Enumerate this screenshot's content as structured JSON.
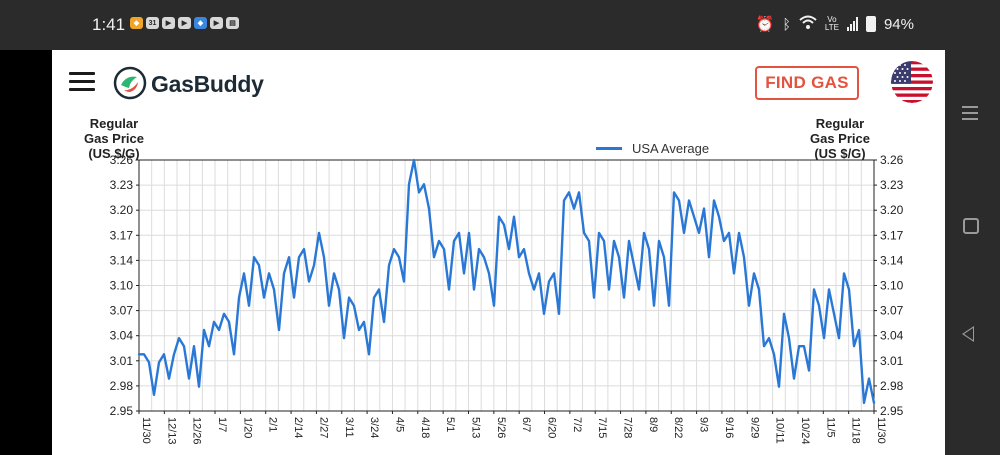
{
  "status_bar": {
    "time": "1:41",
    "notification_icons": [
      "app-orange-icon",
      "calendar-31-icon",
      "youtube-icon",
      "youtube-icon",
      "app-blue-icon",
      "youtube-icon",
      "gallery-icon"
    ],
    "calendar_label": "31",
    "battery": "94%",
    "system_icons": [
      "alarm-icon",
      "bluetooth-icon",
      "wifi-icon",
      "volte-icon",
      "signal-icon",
      "battery-icon"
    ]
  },
  "header": {
    "app_name": "GasBuddy",
    "find_gas_label": "FIND GAS",
    "flag": "us-flag-icon"
  },
  "chart": {
    "y_title_left": "Regular Gas Price (US $/G)",
    "y_title_right": "Regular Gas Price (US $/G)",
    "legend_label": "USA Average"
  },
  "chart_data": {
    "type": "line",
    "title": "",
    "xlabel": "",
    "ylabel": "Regular Gas Price (US $/G)",
    "ylim": [
      2.95,
      3.26
    ],
    "y_ticks": [
      "3.26",
      "3.23",
      "3.20",
      "3.17",
      "3.14",
      "3.10",
      "3.07",
      "3.04",
      "3.01",
      "2.98",
      "2.95"
    ],
    "x_ticks": [
      "11/30",
      "12/13",
      "12/26",
      "1/7",
      "1/20",
      "2/1",
      "2/14",
      "2/27",
      "3/11",
      "3/24",
      "4/5",
      "4/18",
      "5/1",
      "5/13",
      "5/26",
      "6/7",
      "6/20",
      "7/2",
      "7/15",
      "7/28",
      "8/9",
      "8/22",
      "9/3",
      "9/16",
      "9/29",
      "10/11",
      "10/24",
      "11/5",
      "11/18",
      "11/30"
    ],
    "grid": true,
    "legend": "top-center",
    "series": [
      {
        "name": "USA Average",
        "color": "#2a78d6",
        "values": [
          3.02,
          3.02,
          3.01,
          2.97,
          3.01,
          3.02,
          2.99,
          3.02,
          3.04,
          3.03,
          2.99,
          3.03,
          2.98,
          3.05,
          3.03,
          3.06,
          3.05,
          3.07,
          3.06,
          3.02,
          3.09,
          3.12,
          3.08,
          3.14,
          3.13,
          3.09,
          3.12,
          3.1,
          3.05,
          3.12,
          3.14,
          3.09,
          3.14,
          3.15,
          3.11,
          3.13,
          3.17,
          3.14,
          3.08,
          3.12,
          3.1,
          3.04,
          3.09,
          3.08,
          3.05,
          3.06,
          3.02,
          3.09,
          3.1,
          3.06,
          3.13,
          3.15,
          3.14,
          3.11,
          3.23,
          3.26,
          3.22,
          3.23,
          3.2,
          3.14,
          3.16,
          3.15,
          3.1,
          3.16,
          3.17,
          3.12,
          3.17,
          3.1,
          3.15,
          3.14,
          3.12,
          3.08,
          3.19,
          3.18,
          3.15,
          3.19,
          3.14,
          3.15,
          3.12,
          3.1,
          3.12,
          3.07,
          3.11,
          3.12,
          3.07,
          3.21,
          3.22,
          3.2,
          3.22,
          3.17,
          3.16,
          3.09,
          3.17,
          3.16,
          3.1,
          3.16,
          3.14,
          3.09,
          3.16,
          3.13,
          3.1,
          3.17,
          3.15,
          3.08,
          3.16,
          3.14,
          3.08,
          3.22,
          3.21,
          3.17,
          3.21,
          3.19,
          3.17,
          3.2,
          3.14,
          3.21,
          3.19,
          3.16,
          3.17,
          3.12,
          3.17,
          3.14,
          3.08,
          3.12,
          3.1,
          3.03,
          3.04,
          3.02,
          2.98,
          3.07,
          3.04,
          2.99,
          3.03,
          3.03,
          3.0,
          3.1,
          3.08,
          3.04,
          3.1,
          3.07,
          3.04,
          3.12,
          3.1,
          3.03,
          3.05,
          2.96,
          2.99,
          2.96
        ]
      }
    ]
  }
}
